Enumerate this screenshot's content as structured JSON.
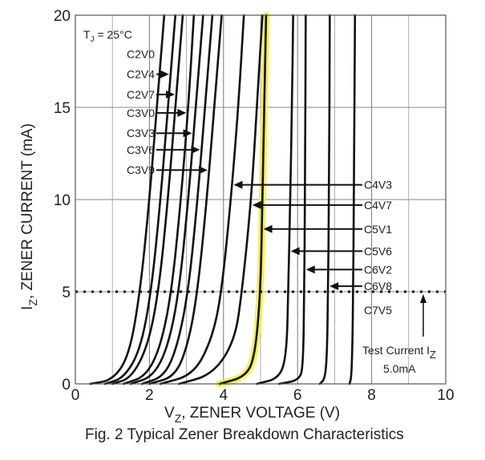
{
  "chart_data": {
    "type": "line",
    "title": "",
    "caption": "Fig. 2  Typical Zener Breakdown Characteristics",
    "xlabel": {
      "main": "V",
      "sub": "Z",
      "rest": ", ZENER VOLTAGE (V)"
    },
    "ylabel": {
      "main": "I",
      "sub": "Z",
      "rest": ", ZENER CURRENT (mA)"
    },
    "xlim": [
      0,
      10
    ],
    "ylim": [
      0,
      20
    ],
    "xticks": [
      0,
      2,
      4,
      6,
      8,
      10
    ],
    "yticks": [
      0,
      5,
      10,
      15,
      20
    ],
    "grid": true,
    "condition": {
      "main": "T",
      "sub": "J",
      "rest": " = 25°C"
    },
    "test_current": {
      "value": 5.0,
      "label_main": "Test Current I",
      "label_sub": "Z",
      "label_value": "5.0mA"
    },
    "highlight": {
      "series": "C5V1",
      "color": "#f5ef3a"
    },
    "series": [
      {
        "name": "C2V0",
        "points": [
          [
            0.4,
            0
          ],
          [
            1.0,
            0.2
          ],
          [
            1.45,
            1.5
          ],
          [
            1.75,
            5
          ],
          [
            2.0,
            10
          ],
          [
            2.2,
            15
          ],
          [
            2.4,
            20
          ]
        ]
      },
      {
        "name": "C2V4",
        "points": [
          [
            0.8,
            0
          ],
          [
            1.3,
            0.3
          ],
          [
            1.75,
            1.8
          ],
          [
            2.05,
            5
          ],
          [
            2.3,
            10
          ],
          [
            2.5,
            15
          ],
          [
            2.7,
            20
          ]
        ]
      },
      {
        "name": "C2V7",
        "points": [
          [
            1.0,
            0
          ],
          [
            1.5,
            0.3
          ],
          [
            1.95,
            2.0
          ],
          [
            2.25,
            5
          ],
          [
            2.5,
            10
          ],
          [
            2.7,
            15
          ],
          [
            2.9,
            20
          ]
        ]
      },
      {
        "name": "C3V0",
        "points": [
          [
            1.3,
            0
          ],
          [
            1.9,
            0.4
          ],
          [
            2.3,
            2.0
          ],
          [
            2.6,
            5
          ],
          [
            2.85,
            10
          ],
          [
            3.05,
            15
          ],
          [
            3.2,
            20
          ]
        ]
      },
      {
        "name": "C3V3",
        "points": [
          [
            1.5,
            0
          ],
          [
            2.1,
            0.4
          ],
          [
            2.5,
            2.0
          ],
          [
            2.8,
            5
          ],
          [
            3.05,
            10
          ],
          [
            3.25,
            15
          ],
          [
            3.45,
            20
          ]
        ]
      },
      {
        "name": "C3V6",
        "points": [
          [
            1.8,
            0
          ],
          [
            2.4,
            0.4
          ],
          [
            2.75,
            2.0
          ],
          [
            3.05,
            5
          ],
          [
            3.3,
            10
          ],
          [
            3.5,
            15
          ],
          [
            3.7,
            20
          ]
        ]
      },
      {
        "name": "C3V9",
        "points": [
          [
            2.0,
            0
          ],
          [
            2.7,
            0.4
          ],
          [
            3.05,
            2.2
          ],
          [
            3.3,
            5
          ],
          [
            3.55,
            10
          ],
          [
            3.75,
            15
          ],
          [
            3.95,
            20
          ]
        ]
      },
      {
        "name": "C4V3",
        "points": [
          [
            2.3,
            0
          ],
          [
            3.2,
            0.5
          ],
          [
            3.7,
            2.5
          ],
          [
            3.95,
            5
          ],
          [
            4.2,
            10
          ],
          [
            4.4,
            15
          ],
          [
            4.55,
            20
          ]
        ]
      },
      {
        "name": "C4V7",
        "points": [
          [
            2.8,
            0
          ],
          [
            3.7,
            0.5
          ],
          [
            4.3,
            2.3
          ],
          [
            4.5,
            5
          ],
          [
            4.75,
            10
          ],
          [
            4.9,
            15
          ],
          [
            5.05,
            20
          ]
        ]
      },
      {
        "name": "C5V1",
        "points": [
          [
            3.9,
            0
          ],
          [
            4.6,
            0.4
          ],
          [
            4.85,
            1.5
          ],
          [
            5.0,
            5
          ],
          [
            5.05,
            10
          ],
          [
            5.1,
            15
          ],
          [
            5.15,
            20
          ]
        ]
      },
      {
        "name": "C5V6",
        "points": [
          [
            4.9,
            0
          ],
          [
            5.5,
            0.3
          ],
          [
            5.7,
            1.5
          ],
          [
            5.75,
            5
          ],
          [
            5.8,
            10
          ],
          [
            5.85,
            15
          ],
          [
            5.88,
            20
          ]
        ]
      },
      {
        "name": "C6V2",
        "points": [
          [
            5.5,
            0
          ],
          [
            6.05,
            0.2
          ],
          [
            6.15,
            1.0
          ],
          [
            6.18,
            5
          ],
          [
            6.2,
            10
          ],
          [
            6.22,
            20
          ]
        ]
      },
      {
        "name": "C6V8",
        "points": [
          [
            6.6,
            0
          ],
          [
            6.75,
            0.3
          ],
          [
            6.8,
            2.0
          ],
          [
            6.82,
            5
          ],
          [
            6.85,
            10
          ],
          [
            6.87,
            20
          ]
        ]
      },
      {
        "name": "C7V5",
        "points": [
          [
            7.4,
            0
          ],
          [
            7.45,
            0.3
          ],
          [
            7.48,
            2.0
          ],
          [
            7.5,
            5
          ],
          [
            7.52,
            10
          ],
          [
            7.55,
            20
          ]
        ]
      }
    ],
    "annotations": [
      {
        "label": "C2V0",
        "target": "C2V0",
        "side": "left",
        "arrow": false,
        "y": 17.9
      },
      {
        "label": "C2V4",
        "target": "C2V4",
        "side": "left",
        "arrow": true,
        "y": 16.8
      },
      {
        "label": "C2V7",
        "target": "C2V7",
        "side": "left",
        "arrow": true,
        "y": 15.7
      },
      {
        "label": "C3V0",
        "target": "C3V0",
        "side": "left",
        "arrow": true,
        "y": 14.7
      },
      {
        "label": "C3V3",
        "target": "C3V3",
        "side": "left",
        "arrow": true,
        "y": 13.6
      },
      {
        "label": "C3V6",
        "target": "C3V6",
        "side": "left",
        "arrow": true,
        "y": 12.7
      },
      {
        "label": "C3V9",
        "target": "C3V9",
        "side": "left",
        "arrow": true,
        "y": 11.6
      },
      {
        "label": "C4V3",
        "target": "C4V3",
        "side": "right",
        "arrow": true,
        "y": 10.8
      },
      {
        "label": "C4V7",
        "target": "C4V7",
        "side": "right",
        "arrow": true,
        "y": 9.7
      },
      {
        "label": "C5V1",
        "target": "C5V1",
        "side": "right",
        "arrow": true,
        "y": 8.4
      },
      {
        "label": "C5V6",
        "target": "C5V6",
        "side": "right",
        "arrow": true,
        "y": 7.2
      },
      {
        "label": "C6V2",
        "target": "C6V2",
        "side": "right",
        "arrow": true,
        "y": 6.2
      },
      {
        "label": "C6V8",
        "target": "C6V8",
        "side": "right",
        "arrow": true,
        "y": 5.3
      },
      {
        "label": "C7V5",
        "target": "C7V5",
        "side": "right",
        "arrow": false,
        "y": 4.0
      }
    ]
  }
}
